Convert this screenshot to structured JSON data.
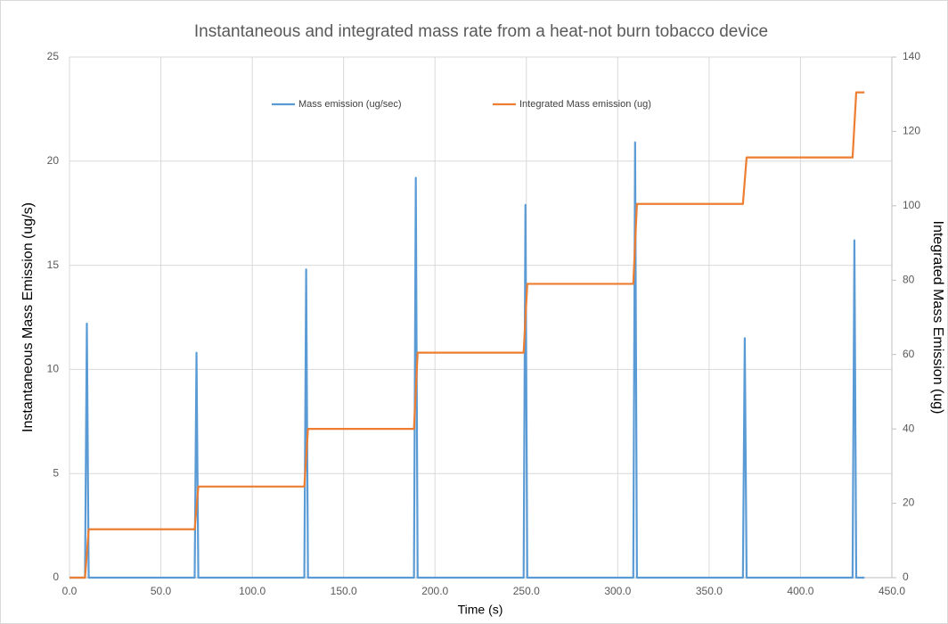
{
  "chart_data": {
    "type": "line",
    "title": "Instantaneous and integrated mass rate from a  heat-not burn tobacco device",
    "xlabel": "Time (s)",
    "ylabel": "Instantaneous Mass Emission (ug/s)",
    "y2label": "Integrated Mass Emission (ug)",
    "x": [
      0,
      8.5,
      9.5,
      10.5,
      68.5,
      69.5,
      70.5,
      128.5,
      129.5,
      130.5,
      188.5,
      189.5,
      190.5,
      248.5,
      249.5,
      250.5,
      308.5,
      309.5,
      310.5,
      368.5,
      369.5,
      370.5,
      428.5,
      429.5,
      430.5,
      435
    ],
    "series": [
      {
        "name": "Mass emission (ug/sec)",
        "color": "#5b9bd5",
        "axis": "y",
        "values": [
          0,
          0,
          12.2,
          0,
          0,
          10.8,
          0,
          0,
          14.8,
          0,
          0,
          19.2,
          0,
          0,
          17.9,
          0,
          0,
          20.9,
          0,
          0,
          11.5,
          0,
          0,
          16.2,
          0,
          0
        ]
      },
      {
        "name": "Integrated Mass emission (ug)",
        "color": "#ed7d31",
        "axis": "y2",
        "values": [
          0,
          0,
          6.5,
          13,
          13,
          18.75,
          24.5,
          24.5,
          32.25,
          40,
          40,
          50.25,
          60.5,
          60.5,
          69.75,
          79,
          79,
          89.75,
          100.5,
          100.5,
          106.75,
          113,
          113,
          121.75,
          130.5,
          130.5
        ]
      }
    ],
    "xlim": [
      0,
      450
    ],
    "xticks": [
      {
        "value": 0,
        "label": "0.0"
      },
      {
        "value": 50,
        "label": "50.0"
      },
      {
        "value": 100,
        "label": "100.0"
      },
      {
        "value": 150,
        "label": "150.0"
      },
      {
        "value": 200,
        "label": "200.0"
      },
      {
        "value": 250,
        "label": "250.0"
      },
      {
        "value": 300,
        "label": "300.0"
      },
      {
        "value": 350,
        "label": "350.0"
      },
      {
        "value": 400,
        "label": "400.0"
      },
      {
        "value": 450,
        "label": "450.0"
      }
    ],
    "ylim": [
      0,
      25
    ],
    "yticks": [
      0,
      5,
      10,
      15,
      20,
      25
    ],
    "y2lim": [
      0,
      140
    ],
    "y2ticks": [
      0,
      20,
      40,
      60,
      80,
      100,
      120,
      140
    ],
    "grid": true,
    "legend": "top"
  }
}
